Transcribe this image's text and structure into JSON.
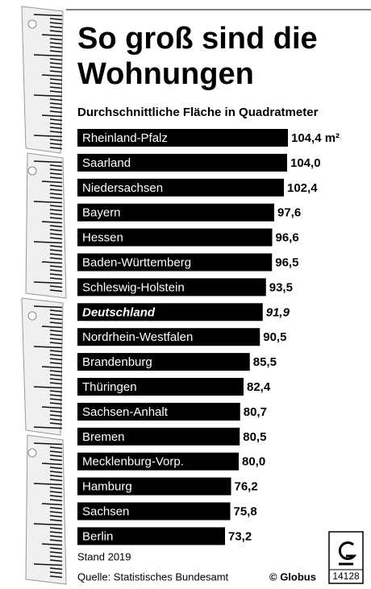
{
  "chart_data": {
    "type": "hbar",
    "title": "So groß sind die Wohnungen",
    "subtitle": "Durchschnittliche Fläche in Quadratmeter",
    "categories": [
      "Rheinland-Pfalz",
      "Saarland",
      "Niedersachsen",
      "Bayern",
      "Hessen",
      "Baden-Württemberg",
      "Schleswig-Holstein",
      "Deutschland",
      "Nordrhein-Westfalen",
      "Brandenburg",
      "Thüringen",
      "Sachsen-Anhalt",
      "Bremen",
      "Mecklenburg-Vorp.",
      "Hamburg",
      "Sachsen",
      "Berlin"
    ],
    "values": [
      104.4,
      104.0,
      102.4,
      97.6,
      96.6,
      96.5,
      93.5,
      91.9,
      90.5,
      85.5,
      82.4,
      80.7,
      80.5,
      80.0,
      76.2,
      75.8,
      73.2
    ],
    "value_labels": [
      "104,4 m²",
      "104,0",
      "102,4",
      "97,6",
      "96,6",
      "96,5",
      "93,5",
      "91,9",
      "90,5",
      "85,5",
      "82,4",
      "80,7",
      "80,5",
      "80,0",
      "76,2",
      "75,8",
      "73,2"
    ],
    "color": "#000000",
    "notes": [
      "Stand 2019",
      "Quelle: Statistisches Bundesamt"
    ],
    "credit": "© Globus",
    "code": "14128"
  }
}
